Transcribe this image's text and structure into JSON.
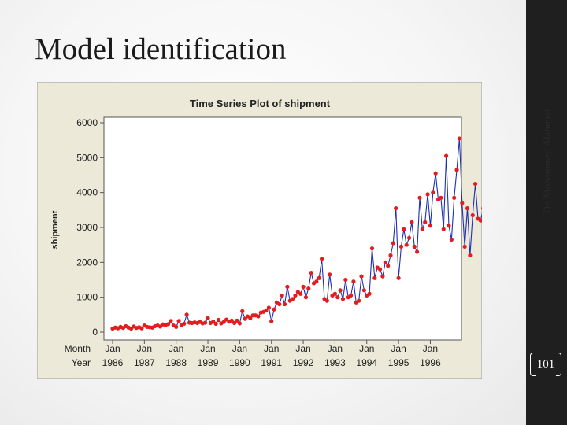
{
  "slide": {
    "title": "Model identification",
    "author": "Dr. Mohammed Alahmed",
    "page_number": "101"
  },
  "colors": {
    "line": "#1f2fb0",
    "marker": "#e31d1d",
    "chart_background": "#ece9d8",
    "plot_background": "#ffffff"
  },
  "chart_data": {
    "type": "line",
    "title": "Time Series Plot of shipment",
    "xlabel": "",
    "ylabel": "shipment",
    "ylim": [
      0,
      6000
    ],
    "yticks": [
      0,
      1000,
      2000,
      3000,
      4000,
      5000,
      6000
    ],
    "grid": false,
    "x_row_labels": [
      "Month",
      "Year"
    ],
    "x_ticks": [
      {
        "month": "Jan",
        "year": "1986"
      },
      {
        "month": "Jan",
        "year": "1987"
      },
      {
        "month": "Jan",
        "year": "1988"
      },
      {
        "month": "Jan",
        "year": "1989"
      },
      {
        "month": "Jan",
        "year": "1990"
      },
      {
        "month": "Jan",
        "year": "1991"
      },
      {
        "month": "Jan",
        "year": "1992"
      },
      {
        "month": "Jan",
        "year": "1993"
      },
      {
        "month": "Jan",
        "year": "1994"
      },
      {
        "month": "Jan",
        "year": "1995"
      },
      {
        "month": "Jan",
        "year": "1996"
      }
    ],
    "start": "Jan 1986",
    "frequency": "monthly",
    "series": [
      {
        "values": [
          100,
          130,
          110,
          150,
          120,
          170,
          130,
          100,
          160,
          120,
          140,
          110,
          190,
          150,
          140,
          130,
          170,
          190,
          160,
          220,
          200,
          230,
          320,
          190,
          150,
          320,
          200,
          240,
          500,
          270,
          260,
          280,
          260,
          290,
          250,
          270,
          400,
          260,
          300,
          240,
          350,
          250,
          290,
          360,
          300,
          330,
          260,
          330,
          250,
          600,
          380,
          450,
          400,
          480,
          480,
          450,
          560,
          580,
          620,
          700,
          310,
          650,
          850,
          800,
          1050,
          800,
          1300,
          900,
          950,
          1050,
          1150,
          1100,
          1300,
          1000,
          1250,
          1700,
          1400,
          1450,
          1550,
          2100,
          950,
          900,
          1650,
          1050,
          1100,
          1000,
          1200,
          950,
          1500,
          1000,
          1050,
          1450,
          850,
          900,
          1600,
          1200,
          1050,
          1100,
          2400,
          1550,
          1850,
          1800,
          1600,
          2000,
          1900,
          2200,
          2550,
          3550,
          1550,
          2450,
          2950,
          2500,
          2700,
          3150,
          2450,
          2300,
          3850,
          2950,
          3150,
          3950,
          3050,
          4000,
          4550,
          3800,
          3850,
          2950,
          5050,
          3050,
          2650,
          3850,
          4650,
          5550,
          3700,
          2450,
          3550,
          2200,
          3350,
          4250,
          3250,
          3200,
          3550,
          2150,
          1550,
          3450,
          2350
        ]
      }
    ]
  }
}
